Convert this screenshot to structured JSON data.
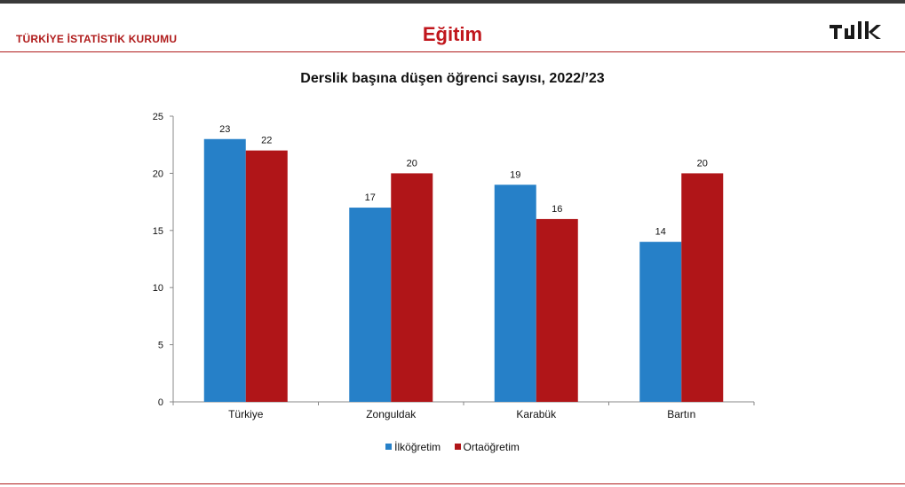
{
  "header": {
    "org_name": "TÜRKİYE İSTATİSTİK KURUMU",
    "section_title": "Eğitim",
    "logo_text": "TÜİK",
    "logo_color": "#1a1a1a"
  },
  "colors": {
    "accent": "#c0161c",
    "series_1": "#2680c8",
    "series_2": "#b01518"
  },
  "chart_data": {
    "type": "bar",
    "title": "Derslik başına düşen öğrenci sayısı, 2022/’23",
    "categories": [
      "Türkiye",
      "Zonguldak",
      "Karabük",
      "Bartın"
    ],
    "series": [
      {
        "name": "İlköğretim",
        "values": [
          23,
          17,
          19,
          14
        ],
        "color": "#2680c8"
      },
      {
        "name": "Ortaöğretim",
        "values": [
          22,
          20,
          16,
          20
        ],
        "color": "#b01518"
      }
    ],
    "yticks": [
      "0",
      "5",
      "10",
      "15",
      "20",
      "25"
    ],
    "ylim": [
      0,
      25
    ],
    "grid": false,
    "legend": "bottom"
  }
}
